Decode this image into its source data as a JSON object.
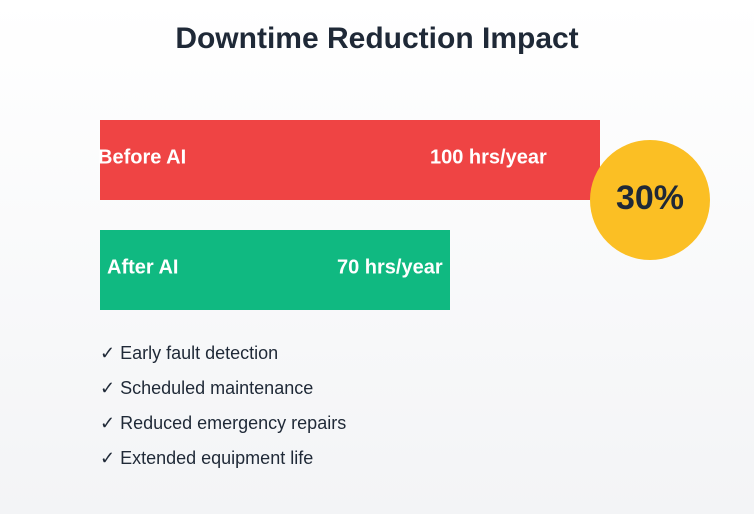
{
  "chart_data": {
    "type": "bar",
    "orientation": "horizontal",
    "title": "Downtime Reduction Impact",
    "categories": [
      "Before AI",
      "After AI"
    ],
    "values": [
      100,
      70
    ],
    "value_labels": [
      "100 hrs/year",
      "70 hrs/year"
    ],
    "colors": [
      "#ef4444",
      "#10b981"
    ],
    "xlim": [
      0,
      100
    ],
    "annotation": "30%",
    "notes": [
      "✓ Early fault detection",
      "✓ Scheduled maintenance",
      "✓ Reduced emergency repairs",
      "✓ Extended equipment life"
    ]
  }
}
